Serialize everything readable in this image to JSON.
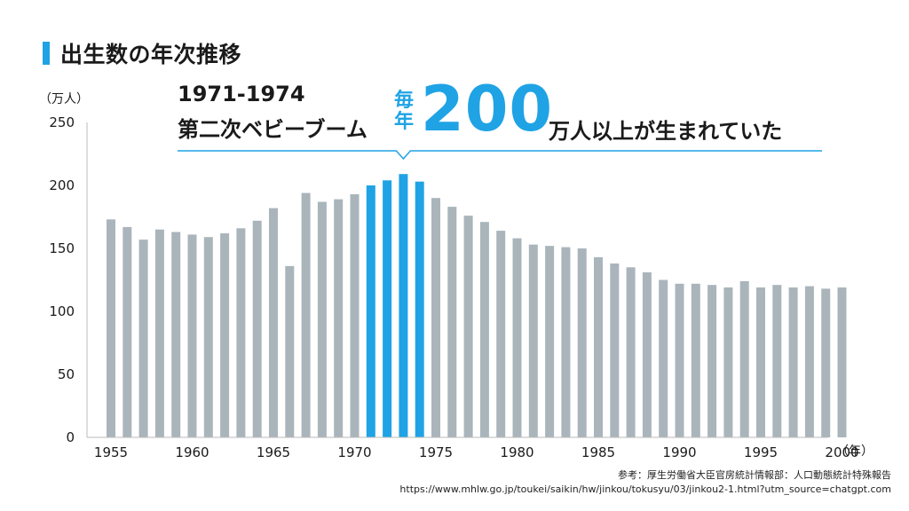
{
  "title": "出生数の年次推移",
  "unit_y": "（万人）",
  "unit_x": "（年）",
  "callout": {
    "years": "1971-1974",
    "label": "第二次ベビーブーム",
    "each_year": "毎年",
    "big_number": "200",
    "tail": "万人以上が生まれていた"
  },
  "source": {
    "line1": "参考：厚生労働省大臣官房統計情報部：人口動態統計特殊報告",
    "line2": "https://www.mhlw.go.jp/toukei/saikin/hw/jinkou/tokusyu/03/jinkou2-1.html?utm_source=chatgpt.com"
  },
  "colors": {
    "normal_bar": "#aab5bb",
    "highlight_bar": "#1fa3e5",
    "axis": "#bbbbbb",
    "text": "#1a1a1a"
  },
  "chart_data": {
    "type": "bar",
    "title": "出生数の年次推移",
    "xlabel": "（年）",
    "ylabel": "（万人）",
    "ylim": [
      0,
      250
    ],
    "yticks": [
      0,
      50,
      100,
      150,
      200,
      250
    ],
    "xticks": [
      1955,
      1960,
      1965,
      1970,
      1975,
      1980,
      1985,
      1990,
      1995,
      2000
    ],
    "grid": false,
    "highlight_range": [
      1971,
      1974
    ],
    "x": [
      1955,
      1956,
      1957,
      1958,
      1959,
      1960,
      1961,
      1962,
      1963,
      1964,
      1965,
      1966,
      1967,
      1968,
      1969,
      1970,
      1971,
      1972,
      1973,
      1974,
      1975,
      1976,
      1977,
      1978,
      1979,
      1980,
      1981,
      1982,
      1983,
      1984,
      1985,
      1986,
      1987,
      1988,
      1989,
      1990,
      1991,
      1992,
      1993,
      1994,
      1995,
      1996,
      1997,
      1998,
      1999,
      2000
    ],
    "values": [
      173,
      167,
      157,
      165,
      163,
      161,
      159,
      162,
      166,
      172,
      182,
      136,
      194,
      187,
      189,
      193,
      200,
      204,
      209,
      203,
      190,
      183,
      176,
      171,
      164,
      158,
      153,
      152,
      151,
      150,
      143,
      138,
      135,
      131,
      125,
      122,
      122,
      121,
      119,
      124,
      119,
      121,
      119,
      120,
      118,
      119
    ]
  }
}
